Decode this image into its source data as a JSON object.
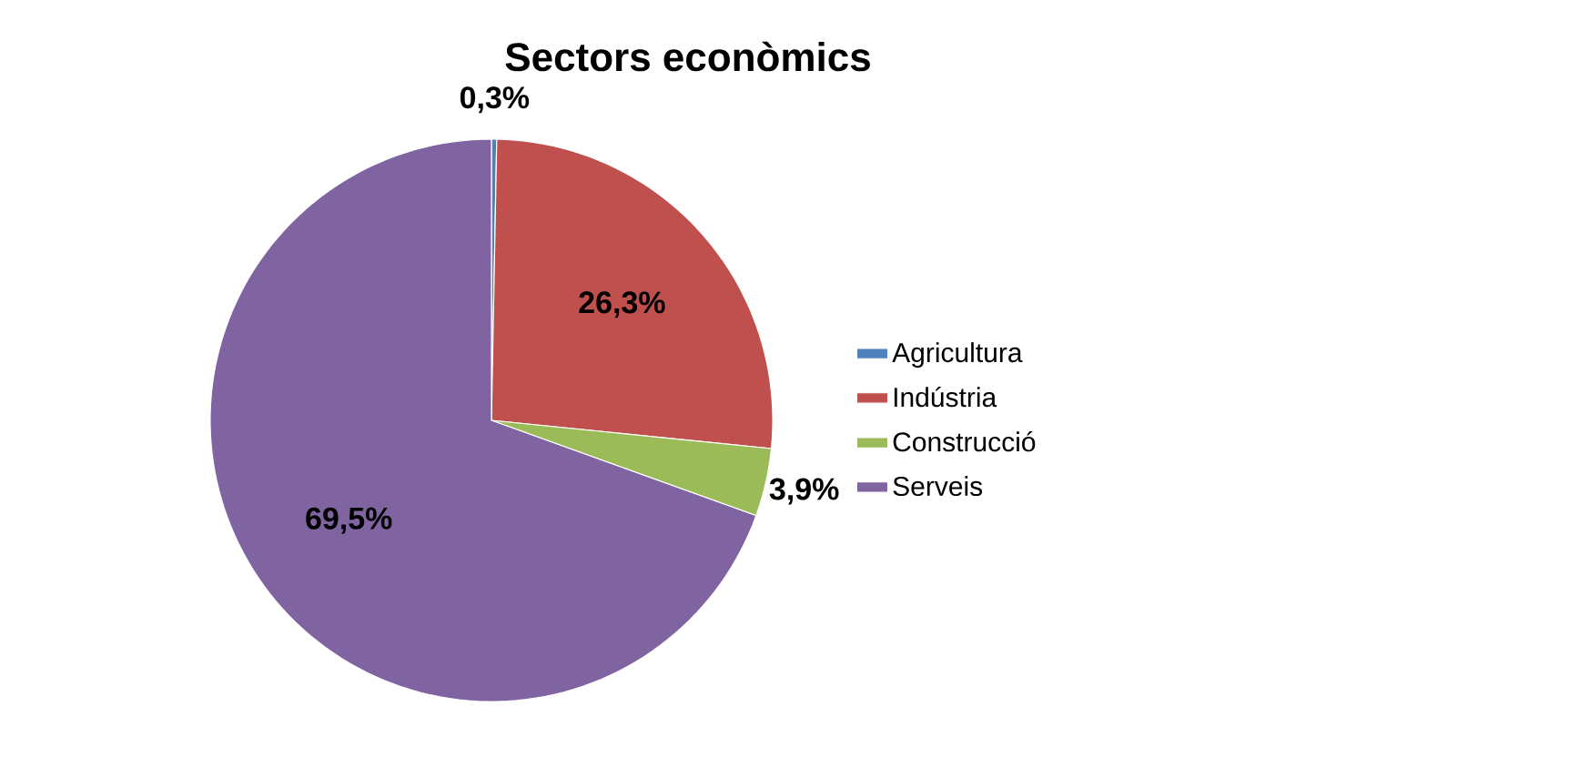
{
  "chart_data": {
    "type": "pie",
    "title": "Sectors econòmics",
    "categories": [
      "Agricultura",
      "Indústria",
      "Construcció",
      "Serveis"
    ],
    "values": [
      0.3,
      26.3,
      3.9,
      69.5
    ],
    "colors": [
      "#4f81bd",
      "#c0504d",
      "#9bbb59",
      "#8064a2"
    ],
    "value_labels": [
      "0,3%",
      "26,3%",
      "3,9%",
      "69,5%"
    ],
    "legend": "right"
  }
}
